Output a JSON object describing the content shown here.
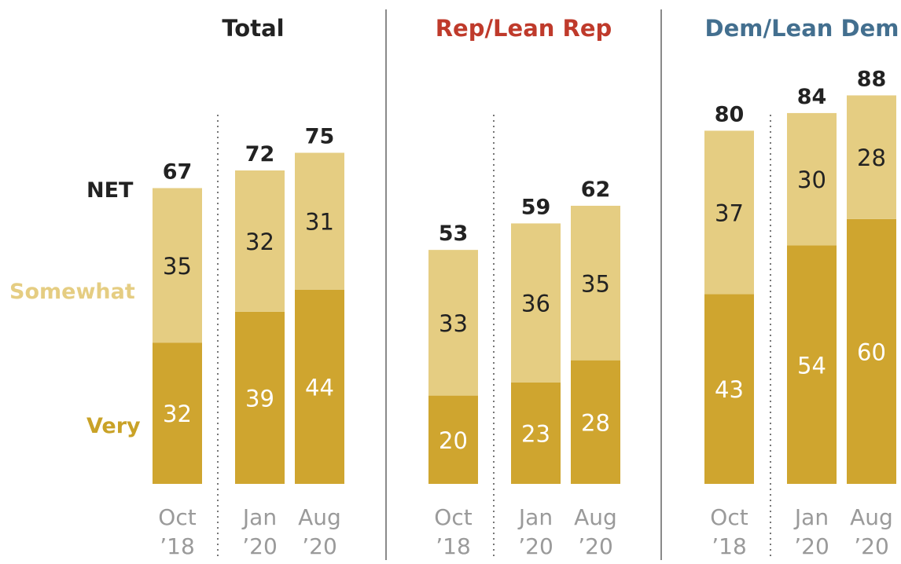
{
  "chart_data": {
    "type": "bar",
    "stacked": true,
    "legend_placement": "left",
    "grid": false,
    "colors": {
      "very": "#cfa52f",
      "somewhat": "#e5cd82",
      "very_label": "#ffffff",
      "somewhat_label": "#222222",
      "legend_very": "#c9a227",
      "legend_somewhat": "#e5cd82",
      "net": "#222222",
      "category": "#9a9a9a",
      "divider_solid": "#8a8a8a",
      "divider_dotted": "#777777"
    },
    "legend": {
      "net": "NET",
      "somewhat": "Somewhat",
      "very": "Very"
    },
    "panels": [
      {
        "title": "Total",
        "title_color": "#222222",
        "categories": [
          {
            "line1": "Oct",
            "line2": "’18"
          },
          {
            "line1": "Jan",
            "line2": "’20"
          },
          {
            "line1": "Aug",
            "line2": "’20"
          }
        ],
        "very": [
          32,
          39,
          44
        ],
        "somewhat": [
          35,
          32,
          31
        ],
        "net": [
          67,
          72,
          75
        ]
      },
      {
        "title": "Rep/Lean Rep",
        "title_color": "#bf3a2b",
        "categories": [
          {
            "line1": "Oct",
            "line2": "’18"
          },
          {
            "line1": "Jan",
            "line2": "’20"
          },
          {
            "line1": "Aug",
            "line2": "’20"
          }
        ],
        "very": [
          20,
          23,
          28
        ],
        "somewhat": [
          33,
          36,
          35
        ],
        "net": [
          53,
          59,
          62
        ]
      },
      {
        "title": "Dem/Lean Dem",
        "title_color": "#436f8f",
        "categories": [
          {
            "line1": "Oct",
            "line2": "’18"
          },
          {
            "line1": "Jan",
            "line2": "’20"
          },
          {
            "line1": "Aug",
            "line2": "’20"
          }
        ],
        "very": [
          43,
          54,
          60
        ],
        "somewhat": [
          37,
          30,
          28
        ],
        "net": [
          80,
          84,
          88
        ]
      }
    ]
  }
}
